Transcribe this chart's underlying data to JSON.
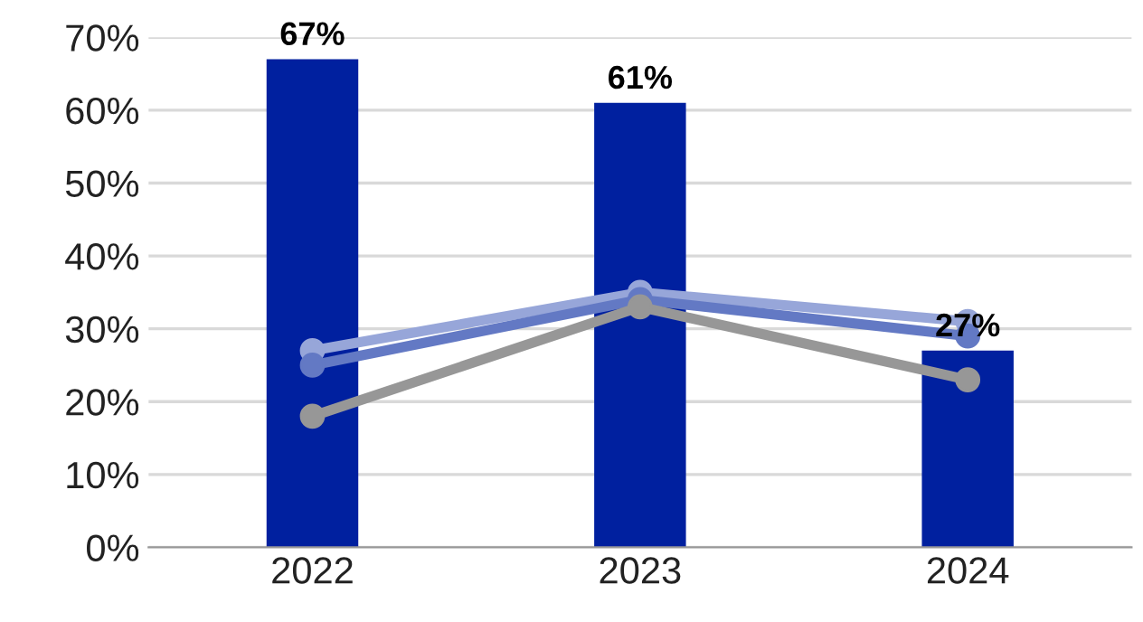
{
  "chart_data": {
    "type": "bar",
    "categories": [
      "2022",
      "2023",
      "2024"
    ],
    "series": [
      {
        "color": "#00209f",
        "values": [
          67,
          61,
          27
        ],
        "value_labels": [
          "67%",
          "61%",
          "27%"
        ]
      },
      {
        "type": "line",
        "color": "#97a6d9",
        "values": [
          27,
          35,
          31
        ]
      },
      {
        "type": "line",
        "color": "#6379c4",
        "values": [
          25,
          34,
          29
        ]
      },
      {
        "type": "line",
        "color": "#979797",
        "values": [
          18,
          33,
          23
        ]
      }
    ],
    "ylim": [
      0,
      70
    ],
    "yticks": [
      {
        "value": 0,
        "label": "0%"
      },
      {
        "value": 10,
        "label": "10%"
      },
      {
        "value": 20,
        "label": "20%"
      },
      {
        "value": 30,
        "label": "30%"
      },
      {
        "value": 40,
        "label": "40%"
      },
      {
        "value": 50,
        "label": "50%"
      },
      {
        "value": 60,
        "label": "60%"
      },
      {
        "value": 70,
        "label": "70%"
      }
    ],
    "grid": "y",
    "marker": "circle",
    "line_style": "solid",
    "legend": false
  }
}
